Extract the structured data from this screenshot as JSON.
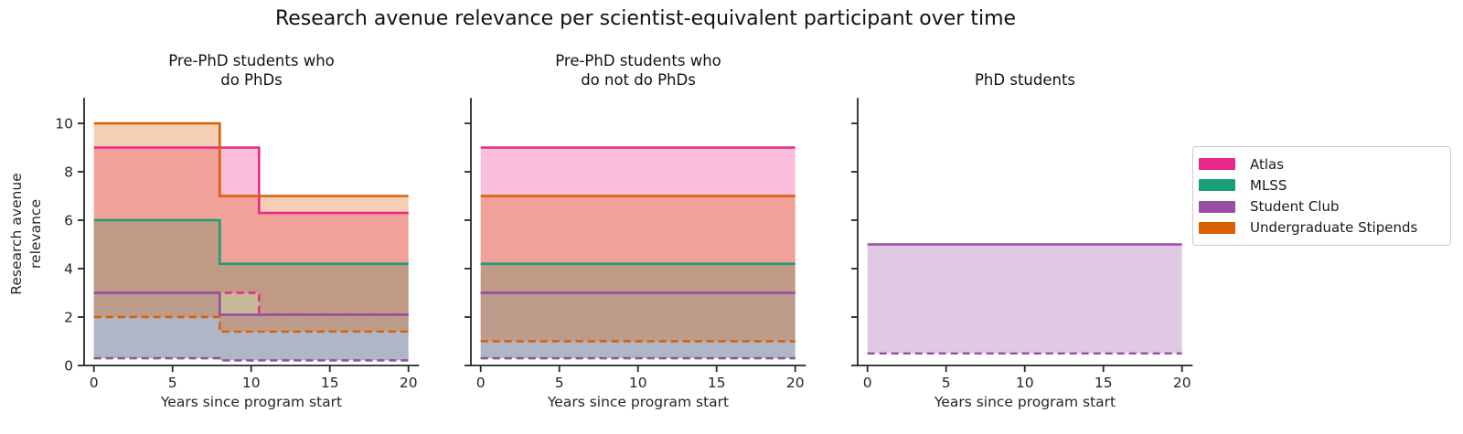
{
  "title": "Research avenue relevance per scientist-equivalent participant over time",
  "legend": {
    "items": [
      {
        "label": "Atlas",
        "color": "#e7298a"
      },
      {
        "label": "MLSS",
        "color": "#1b9e77"
      },
      {
        "label": "Student Club",
        "color": "#984ea3"
      },
      {
        "label": "Undergraduate Stipends",
        "color": "#d95f02"
      }
    ]
  },
  "chart_data": {
    "type": "area",
    "style": "step-area-between-solid-and-dashed-bounds",
    "xlabel": "Years since program start",
    "ylabel": "Research avenue\nrelevance",
    "x_range": [
      0,
      20
    ],
    "y_range": [
      0,
      11
    ],
    "x_ticks": [
      0,
      5,
      10,
      15,
      20
    ],
    "y_ticks": [
      0,
      2,
      4,
      6,
      8,
      10
    ],
    "legend_position": "right",
    "grid": false,
    "fill_opacity": 0.3,
    "panels": [
      {
        "title": "Pre-PhD students who\ndo PhDs",
        "series": [
          {
            "name": "Atlas",
            "color": "#e7298a",
            "solid": {
              "x": [
                0,
                10.5,
                20
              ],
              "y": [
                9,
                6.3
              ]
            },
            "dashed": {
              "x": [
                0,
                10.5,
                20
              ],
              "y": [
                3,
                2.1
              ]
            }
          },
          {
            "name": "MLSS",
            "color": "#1b9e77",
            "solid": {
              "x": [
                0,
                8,
                20
              ],
              "y": [
                6,
                4.2
              ]
            },
            "dashed": {
              "x": [
                0,
                8,
                20
              ],
              "y": [
                0.3,
                0.21
              ]
            }
          },
          {
            "name": "Student Club",
            "color": "#984ea3",
            "solid": {
              "x": [
                0,
                8,
                20
              ],
              "y": [
                3,
                2.1
              ]
            },
            "dashed": {
              "x": [
                0,
                8,
                20
              ],
              "y": [
                0.3,
                0.21
              ]
            }
          },
          {
            "name": "Undergraduate Stipends",
            "color": "#d95f02",
            "solid": {
              "x": [
                0,
                8,
                20
              ],
              "y": [
                10,
                7
              ]
            },
            "dashed": {
              "x": [
                0,
                8,
                20
              ],
              "y": [
                2,
                1.4
              ]
            }
          }
        ]
      },
      {
        "title": "Pre-PhD students who\ndo not do PhDs",
        "series": [
          {
            "name": "Atlas",
            "color": "#e7298a",
            "solid": {
              "x": [
                0,
                20
              ],
              "y": [
                9
              ]
            },
            "dashed": {
              "x": [
                0,
                20
              ],
              "y": [
                3
              ]
            }
          },
          {
            "name": "MLSS",
            "color": "#1b9e77",
            "solid": {
              "x": [
                0,
                20
              ],
              "y": [
                4.2
              ]
            },
            "dashed": {
              "x": [
                0,
                20
              ],
              "y": [
                0.3
              ]
            }
          },
          {
            "name": "Student Club",
            "color": "#984ea3",
            "solid": {
              "x": [
                0,
                20
              ],
              "y": [
                3
              ]
            },
            "dashed": {
              "x": [
                0,
                20
              ],
              "y": [
                0.3
              ]
            }
          },
          {
            "name": "Undergraduate Stipends",
            "color": "#d95f02",
            "solid": {
              "x": [
                0,
                20
              ],
              "y": [
                7
              ]
            },
            "dashed": {
              "x": [
                0,
                20
              ],
              "y": [
                1
              ]
            }
          }
        ]
      },
      {
        "title": "PhD students",
        "series": [
          {
            "name": "Student Club",
            "color": "#984ea3",
            "solid": {
              "x": [
                0,
                20
              ],
              "y": [
                5
              ]
            },
            "dashed": {
              "x": [
                0,
                20
              ],
              "y": [
                0.5
              ]
            }
          }
        ]
      }
    ]
  }
}
